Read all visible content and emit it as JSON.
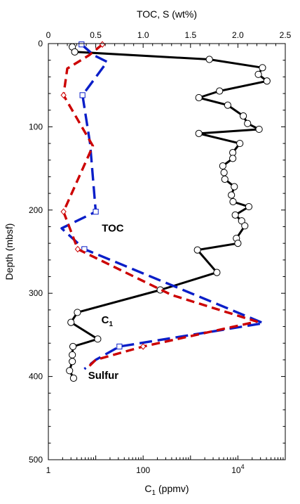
{
  "chart_data": {
    "type": "line",
    "title": "",
    "ylabel": "Depth (mbsf)",
    "ylim": [
      0,
      500
    ],
    "yticks": [
      "0",
      "100",
      "200",
      "300",
      "400",
      "500"
    ],
    "ytick_values": [
      0,
      100,
      200,
      300,
      400,
      500
    ],
    "top_axis": {
      "label": "TOC, S (wt%)",
      "range": [
        0,
        2.5
      ],
      "ticks": [
        "0",
        "0.5",
        "1.0",
        "1.5",
        "2.0",
        "2.5"
      ],
      "tick_values": [
        0,
        0.5,
        1.0,
        1.5,
        2.0,
        2.5
      ]
    },
    "bottom_axis": {
      "label_main": "C",
      "label_sub": "1",
      "label_rest": " (ppmv)",
      "scale": "log",
      "range": [
        1,
        100000
      ],
      "ticks": [
        "1",
        "100",
        "10"
      ],
      "ticks_sup": [
        "",
        "",
        "4"
      ],
      "tick_values": [
        1,
        100,
        10000
      ]
    },
    "series": [
      {
        "name": "C",
        "name_sub": "1",
        "axis": "bottom",
        "color": "#000000",
        "style": "solid",
        "marker": "circle",
        "points": [
          {
            "depth": 4,
            "value": 3.2
          },
          {
            "depth": 10,
            "value": 3.6
          },
          {
            "depth": 19,
            "value": 2500
          },
          {
            "depth": 29,
            "value": 33000
          },
          {
            "depth": 37,
            "value": 27000
          },
          {
            "depth": 45,
            "value": 41000
          },
          {
            "depth": 57,
            "value": 4100
          },
          {
            "depth": 65,
            "value": 1500
          },
          {
            "depth": 74,
            "value": 6100
          },
          {
            "depth": 87,
            "value": 13000
          },
          {
            "depth": 96,
            "value": 16000
          },
          {
            "depth": 103,
            "value": 28000
          },
          {
            "depth": 108,
            "value": 1500
          },
          {
            "depth": 120,
            "value": 11000
          },
          {
            "depth": 131,
            "value": 7800
          },
          {
            "depth": 138,
            "value": 7800
          },
          {
            "depth": 147,
            "value": 4800
          },
          {
            "depth": 155,
            "value": 5100
          },
          {
            "depth": 163,
            "value": 5300
          },
          {
            "depth": 172,
            "value": 8400
          },
          {
            "depth": 182,
            "value": 7300
          },
          {
            "depth": 190,
            "value": 7900
          },
          {
            "depth": 196,
            "value": 17000
          },
          {
            "depth": 206,
            "value": 8800
          },
          {
            "depth": 213,
            "value": 12000
          },
          {
            "depth": 219,
            "value": 14000
          },
          {
            "depth": 234,
            "value": 9300
          },
          {
            "depth": 240,
            "value": 10000
          },
          {
            "depth": 248,
            "value": 1400
          },
          {
            "depth": 275,
            "value": 3600
          },
          {
            "depth": 296,
            "value": 230
          },
          {
            "depth": 323,
            "value": 4.1
          },
          {
            "depth": 335,
            "value": 3
          },
          {
            "depth": 355,
            "value": 11
          },
          {
            "depth": 364,
            "value": 3.3
          },
          {
            "depth": 374,
            "value": 3.2
          },
          {
            "depth": 382,
            "value": 3.2
          },
          {
            "depth": 393,
            "value": 2.8
          },
          {
            "depth": 402,
            "value": 3.4
          }
        ]
      },
      {
        "name": "TOC",
        "axis": "top",
        "color": "#0a1ec8",
        "style": "dashed",
        "marker": "square",
        "marked_depths": [
          1,
          62,
          202,
          247,
          364
        ],
        "points": [
          {
            "depth": 1,
            "value": 0.35
          },
          {
            "depth": 14,
            "value": 0.48
          },
          {
            "depth": 22,
            "value": 0.62
          },
          {
            "depth": 62,
            "value": 0.36
          },
          {
            "depth": 120,
            "value": 0.44
          },
          {
            "depth": 202,
            "value": 0.5
          },
          {
            "depth": 222,
            "value": 0.14
          },
          {
            "depth": 247,
            "value": 0.38
          },
          {
            "depth": 262,
            "value": 0.7
          },
          {
            "depth": 336,
            "value": 2.27
          },
          {
            "depth": 364,
            "value": 0.75
          },
          {
            "depth": 380,
            "value": 0.5
          },
          {
            "depth": 391,
            "value": 0.38
          }
        ]
      },
      {
        "name": "Sulfur",
        "axis": "top",
        "color": "#cc0000",
        "style": "dashed",
        "marker": "diamond",
        "marked_depths": [
          1,
          62,
          202,
          247,
          364
        ],
        "points": [
          {
            "depth": 1,
            "value": 0.57
          },
          {
            "depth": 14,
            "value": 0.43
          },
          {
            "depth": 30,
            "value": 0.2
          },
          {
            "depth": 62,
            "value": 0.16
          },
          {
            "depth": 123,
            "value": 0.47
          },
          {
            "depth": 202,
            "value": 0.16
          },
          {
            "depth": 247,
            "value": 0.31
          },
          {
            "depth": 262,
            "value": 0.58
          },
          {
            "depth": 302,
            "value": 1.3
          },
          {
            "depth": 334,
            "value": 2.2
          },
          {
            "depth": 364,
            "value": 1.0
          },
          {
            "depth": 380,
            "value": 0.5
          },
          {
            "depth": 391,
            "value": 0.4
          }
        ]
      }
    ],
    "annotations": [
      {
        "text": "TOC",
        "color": "#0a1ec8",
        "depth": 221,
        "value": 0.68
      },
      {
        "text": "C",
        "sub": "1",
        "color": "#000000",
        "depth": 331,
        "value": 0.62
      },
      {
        "text": "Sulfur",
        "color": "#cc0000",
        "depth": 398,
        "value": 0.58
      }
    ],
    "grid": false,
    "legend": "none"
  }
}
